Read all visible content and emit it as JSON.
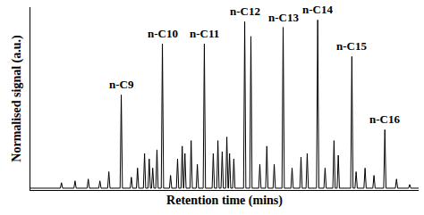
{
  "chart_data": {
    "type": "line",
    "x_label": "Retention time (mins)",
    "y_label": "Normalised signal (a.u.)",
    "color": "#000000",
    "xlim": [
      0,
      100
    ],
    "ylim": [
      0,
      100
    ],
    "xticks": [],
    "yticks": [],
    "tick_labels": false,
    "grid": false,
    "x": [
      0,
      7.7,
      8.0,
      8.3,
      11.2,
      11.5,
      11.8,
      14.6,
      14.9,
      15.2,
      17.6,
      17.9,
      18.2,
      19.9,
      20.2,
      20.5,
      23.1,
      23.4,
      23.7,
      25.7,
      26.0,
      26.3,
      27.3,
      27.6,
      27.9,
      29.1,
      29.4,
      29.7,
      30.3,
      30.6,
      30.9,
      31.2,
      31.5,
      31.8,
      32.3,
      32.6,
      32.9,
      33.7,
      34.0,
      34.3,
      35.8,
      36.1,
      36.4,
      37.6,
      37.9,
      38.2,
      38.8,
      39.1,
      39.4,
      39.5,
      39.8,
      40.1,
      41.1,
      41.4,
      41.7,
      42.7,
      43.0,
      43.3,
      44.5,
      44.8,
      45.1,
      46.8,
      47.1,
      47.4,
      48.0,
      48.3,
      48.6,
      49.1,
      49.4,
      49.7,
      50.3,
      50.6,
      50.9,
      51.0,
      51.3,
      51.6,
      52.1,
      52.4,
      52.7,
      54.9,
      55.2,
      55.5,
      56.5,
      56.8,
      57.1,
      58.8,
      59.1,
      59.4,
      60.6,
      60.9,
      61.2,
      62.5,
      62.8,
      63.1,
      64.8,
      65.1,
      65.4,
      67.1,
      67.4,
      67.7,
      69.4,
      69.7,
      70.0,
      71.0,
      71.3,
      71.6,
      73.7,
      74.0,
      74.3,
      75.6,
      75.9,
      76.2,
      77.9,
      78.2,
      78.5,
      79.0,
      79.3,
      79.6,
      82.5,
      82.8,
      83.1,
      83.6,
      83.9,
      84.2,
      85.9,
      86.2,
      86.5,
      88.2,
      88.5,
      88.8,
      91.0,
      91.3,
      91.6,
      94.0,
      94.3,
      94.6,
      97.4,
      97.7,
      98.0,
      100
    ],
    "values": [
      1,
      1,
      4,
      1,
      1,
      5,
      1,
      1,
      6,
      1,
      1,
      5,
      1,
      1,
      10,
      1,
      1,
      52,
      1,
      1,
      7,
      1,
      1,
      12,
      1,
      1,
      20,
      1,
      1,
      17,
      1,
      1,
      12,
      1,
      1,
      22,
      1,
      1,
      80,
      1,
      1,
      8,
      1,
      1,
      17,
      1,
      1,
      24,
      1,
      1,
      20,
      1,
      1,
      27,
      1,
      1,
      14,
      1,
      1,
      80,
      1,
      1,
      20,
      1,
      1,
      27,
      1,
      1,
      21,
      1,
      1,
      29,
      1,
      1,
      20,
      1,
      1,
      17,
      1,
      1,
      92,
      1,
      1,
      84,
      1,
      1,
      14,
      1,
      1,
      24,
      1,
      1,
      14,
      1,
      1,
      89,
      1,
      1,
      12,
      1,
      1,
      18,
      1,
      1,
      20,
      1,
      1,
      93,
      1,
      1,
      12,
      1,
      1,
      27,
      1,
      1,
      19,
      1,
      1,
      73,
      1,
      1,
      10,
      1,
      1,
      12,
      1,
      1,
      8,
      1,
      1,
      33,
      1,
      1,
      6,
      1,
      1,
      3,
      1,
      1
    ],
    "annotations": [
      {
        "text": "n-C9",
        "x": 23.4,
        "y": 52
      },
      {
        "text": "n-C10",
        "x": 34.0,
        "y": 80
      },
      {
        "text": "n-C11",
        "x": 44.8,
        "y": 80
      },
      {
        "text": "n-C12",
        "x": 55.2,
        "y": 92
      },
      {
        "text": "n-C13",
        "x": 65.1,
        "y": 89
      },
      {
        "text": "n-C14",
        "x": 74.0,
        "y": 93
      },
      {
        "text": "n-C15",
        "x": 82.8,
        "y": 73
      },
      {
        "text": "n-C16",
        "x": 91.3,
        "y": 33
      }
    ]
  }
}
